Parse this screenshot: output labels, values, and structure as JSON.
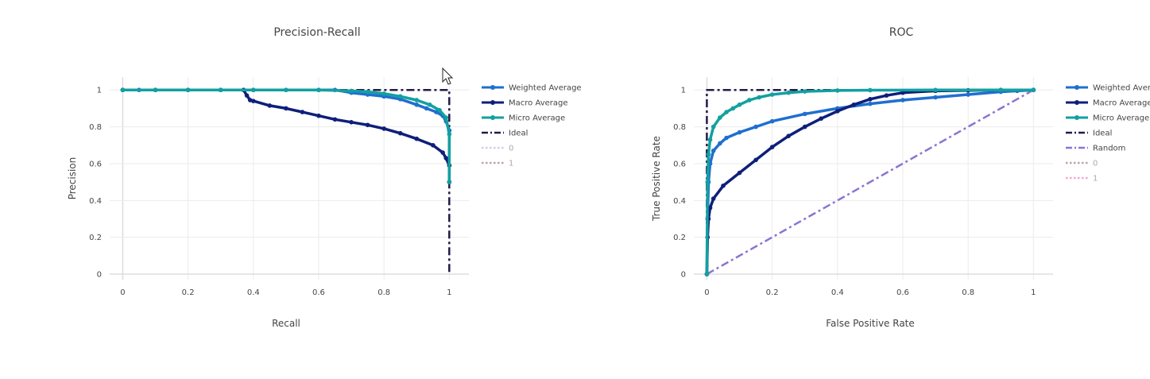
{
  "chart_data": [
    {
      "type": "line",
      "title": "Precision-Recall",
      "xlabel": "Recall",
      "ylabel": "Precision",
      "xlim": [
        -0.04,
        1.06
      ],
      "ylim": [
        -0.03,
        1.07
      ],
      "xticks": [
        "0",
        "0.2",
        "0.4",
        "0.6",
        "0.8",
        "1"
      ],
      "yticks": [
        "0",
        "0.2",
        "0.4",
        "0.6",
        "0.8",
        "1"
      ],
      "grid": true,
      "legend_position": "right",
      "series": [
        {
          "name": "Weighted Average",
          "color": "#1f6fcf",
          "style": "solid-markers",
          "x": [
            0,
            0.05,
            0.1,
            0.2,
            0.3,
            0.4,
            0.5,
            0.6,
            0.65,
            0.7,
            0.75,
            0.8,
            0.85,
            0.9,
            0.93,
            0.96,
            0.98,
            0.99,
            1.0,
            1.0
          ],
          "y": [
            1,
            1,
            1,
            1,
            1,
            1,
            1,
            1,
            1,
            0.985,
            0.975,
            0.965,
            0.95,
            0.92,
            0.9,
            0.88,
            0.86,
            0.83,
            0.78,
            0.5
          ]
        },
        {
          "name": "Macro Average",
          "color": "#0e1f7a",
          "style": "solid-markers",
          "x": [
            0,
            0.1,
            0.2,
            0.3,
            0.37,
            0.38,
            0.39,
            0.4,
            0.45,
            0.5,
            0.55,
            0.6,
            0.65,
            0.7,
            0.75,
            0.8,
            0.85,
            0.9,
            0.95,
            0.98,
            0.99,
            1.0,
            1.0
          ],
          "y": [
            1,
            1,
            1,
            1,
            1,
            0.97,
            0.945,
            0.94,
            0.915,
            0.9,
            0.88,
            0.86,
            0.84,
            0.825,
            0.81,
            0.79,
            0.765,
            0.735,
            0.7,
            0.66,
            0.63,
            0.59,
            0.5
          ]
        },
        {
          "name": "Micro Average",
          "color": "#12a0a0",
          "style": "solid-markers",
          "x": [
            0,
            0.1,
            0.2,
            0.3,
            0.4,
            0.5,
            0.6,
            0.7,
            0.75,
            0.8,
            0.85,
            0.9,
            0.94,
            0.97,
            0.99,
            1.0,
            1.0
          ],
          "y": [
            1,
            1,
            1,
            1,
            1,
            1,
            1,
            0.995,
            0.99,
            0.98,
            0.965,
            0.945,
            0.92,
            0.89,
            0.85,
            0.76,
            0.5
          ]
        },
        {
          "name": "Ideal",
          "color": "#241a4a",
          "style": "dashdot",
          "x": [
            0,
            1,
            1
          ],
          "y": [
            1,
            1,
            0
          ]
        },
        {
          "name": "0",
          "color": "#b9a9e6",
          "style": "dotted",
          "hidden": true,
          "x": [],
          "y": []
        },
        {
          "name": "1",
          "color": "#8c6a6a",
          "style": "dotted",
          "hidden": true,
          "x": [],
          "y": []
        }
      ]
    },
    {
      "type": "line",
      "title": "ROC",
      "xlabel": "False Positive Rate",
      "ylabel": "True Positive Rate",
      "xlim": [
        -0.04,
        1.06
      ],
      "ylim": [
        -0.03,
        1.07
      ],
      "xticks": [
        "0",
        "0.2",
        "0.4",
        "0.6",
        "0.8",
        "1"
      ],
      "yticks": [
        "0",
        "0.2",
        "0.4",
        "0.6",
        "0.8",
        "1"
      ],
      "grid": true,
      "legend_position": "right",
      "series": [
        {
          "name": "Weighted Average",
          "color": "#1f6fcf",
          "style": "solid-markers",
          "x": [
            0,
            0.002,
            0.005,
            0.01,
            0.02,
            0.04,
            0.06,
            0.1,
            0.15,
            0.2,
            0.3,
            0.4,
            0.5,
            0.6,
            0.7,
            0.8,
            0.9,
            0.95,
            1.0
          ],
          "y": [
            0,
            0.3,
            0.5,
            0.6,
            0.67,
            0.71,
            0.74,
            0.77,
            0.8,
            0.83,
            0.87,
            0.9,
            0.925,
            0.945,
            0.96,
            0.975,
            0.99,
            0.995,
            1.0
          ]
        },
        {
          "name": "Macro Average",
          "color": "#0e1f7a",
          "style": "solid-markers",
          "x": [
            0,
            0.002,
            0.005,
            0.01,
            0.02,
            0.05,
            0.1,
            0.15,
            0.2,
            0.25,
            0.3,
            0.35,
            0.4,
            0.45,
            0.5,
            0.55,
            0.6,
            0.7,
            0.8,
            0.9,
            1.0
          ],
          "y": [
            0,
            0.2,
            0.3,
            0.36,
            0.41,
            0.48,
            0.55,
            0.62,
            0.69,
            0.75,
            0.8,
            0.845,
            0.885,
            0.92,
            0.95,
            0.97,
            0.985,
            0.995,
            0.998,
            1.0,
            1.0
          ]
        },
        {
          "name": "Micro Average",
          "color": "#12a0a0",
          "style": "solid-markers",
          "x": [
            0,
            0.002,
            0.005,
            0.01,
            0.02,
            0.04,
            0.06,
            0.08,
            0.1,
            0.13,
            0.16,
            0.2,
            0.25,
            0.3,
            0.4,
            0.5,
            0.7,
            0.9,
            1.0
          ],
          "y": [
            0,
            0.5,
            0.65,
            0.73,
            0.8,
            0.85,
            0.88,
            0.9,
            0.92,
            0.945,
            0.96,
            0.975,
            0.985,
            0.992,
            0.997,
            0.999,
            1.0,
            1.0,
            1.0
          ]
        },
        {
          "name": "Ideal",
          "color": "#241a4a",
          "style": "dashdot",
          "x": [
            0,
            0,
            1
          ],
          "y": [
            0,
            1,
            1
          ]
        },
        {
          "name": "Random",
          "color": "#8c74d0",
          "style": "dashdot",
          "x": [
            0,
            1
          ],
          "y": [
            0,
            1
          ]
        },
        {
          "name": "0",
          "color": "#8c6a6a",
          "style": "dotted",
          "hidden": true,
          "x": [],
          "y": []
        },
        {
          "name": "1",
          "color": "#e86fb6",
          "style": "dotted",
          "hidden": true,
          "x": [],
          "y": []
        }
      ]
    }
  ]
}
